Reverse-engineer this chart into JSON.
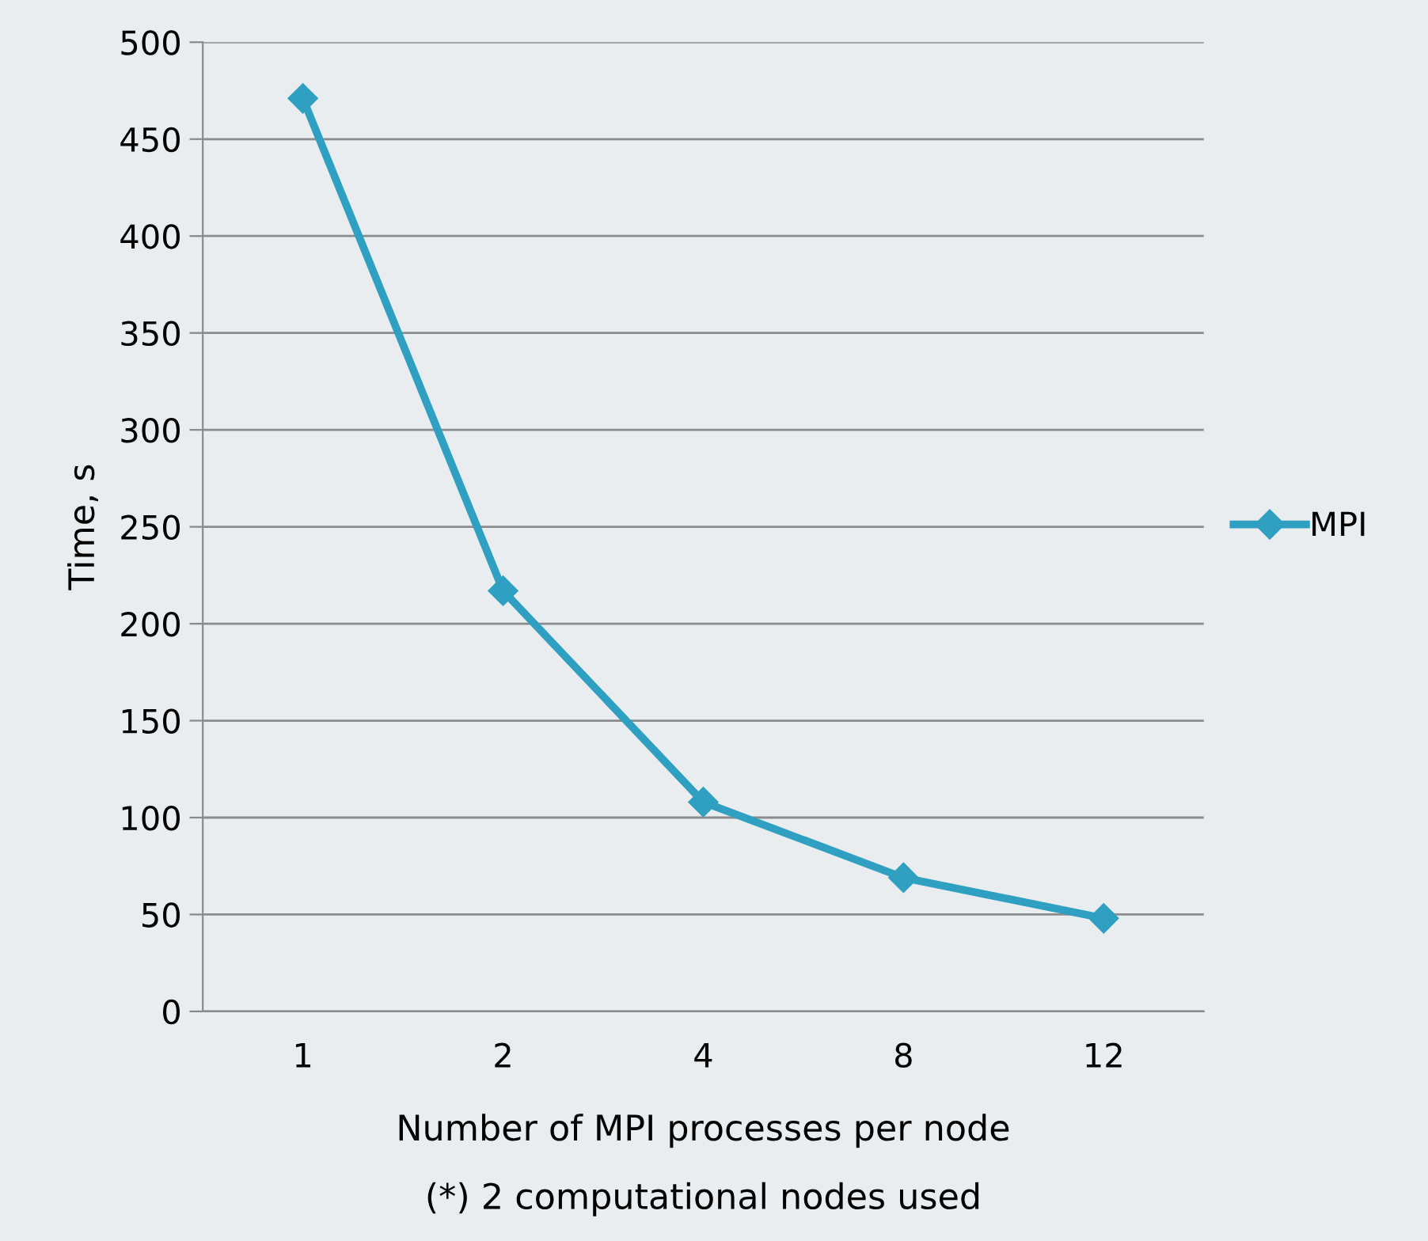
{
  "chart_data": {
    "type": "line",
    "xlabel": "Number of MPI processes per node",
    "ylabel": "Time, s",
    "annotations": [
      "(*) 2 computational nodes used"
    ],
    "categories": [
      "1",
      "2",
      "4",
      "8",
      "12"
    ],
    "series": [
      {
        "name": "MPI",
        "color": "#2fa0c2",
        "values": [
          471,
          217,
          108,
          69,
          48
        ]
      }
    ],
    "ylim": [
      0,
      500
    ],
    "yticks": [
      0,
      50,
      100,
      150,
      200,
      250,
      300,
      350,
      400,
      450,
      500
    ],
    "grid": "y",
    "legend": "right",
    "marker": "diamond",
    "line_style": "solid"
  }
}
